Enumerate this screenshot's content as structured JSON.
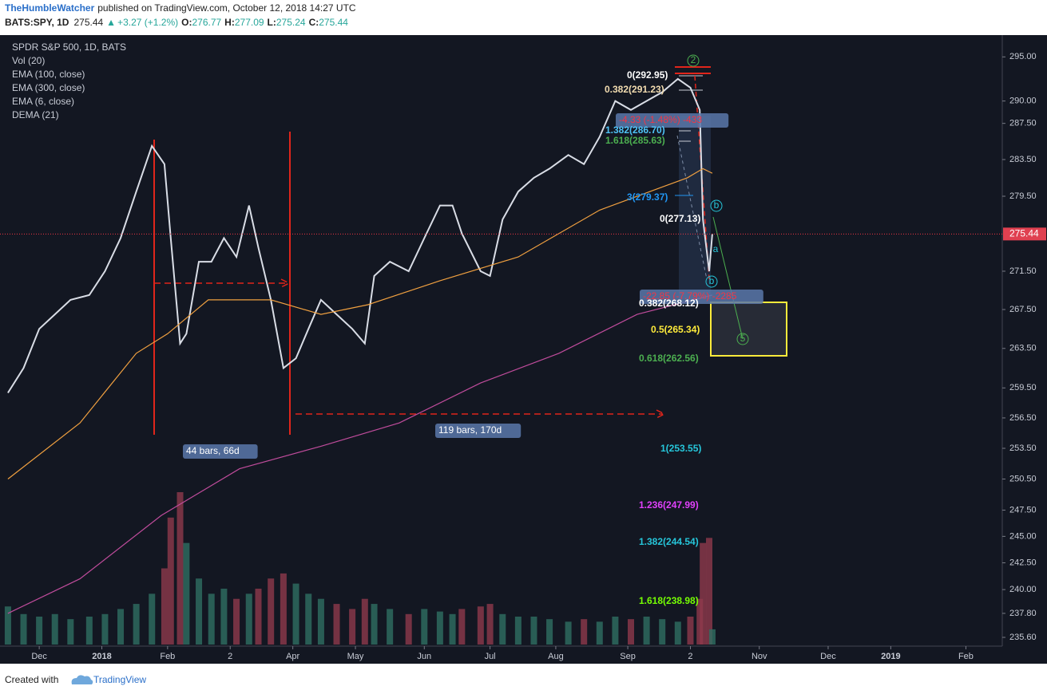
{
  "header": {
    "author": "TheHumbleWatcher",
    "published": "published on TradingView.com, October 12, 2018 14:27 UTC",
    "last": 275.44,
    "arrow": "▲",
    "change": "+3.27 (+1.2%)",
    "ohlc": [
      {
        "label": "O:",
        "value": 276.77
      },
      {
        "label": "H:",
        "value": 277.09
      },
      {
        "label": "L:",
        "value": 275.24
      },
      {
        "label": "C:",
        "value": 275.44
      }
    ]
  },
  "footer": {
    "created": "Created with",
    "brand": "TradingView"
  },
  "chart_data": {
    "type": "line",
    "title": "SPDR S&P 500, 1D, BATS",
    "log_scale": true,
    "grid": false,
    "xlim": [
      0,
      320
    ],
    "ylim": [
      234.8,
      297.5
    ],
    "xticks": [
      {
        "value": 11,
        "label": "Dec"
      },
      {
        "value": 31,
        "label": "2018"
      },
      {
        "value": 52,
        "label": "Feb"
      },
      {
        "value": 72,
        "label": "2"
      },
      {
        "value": 92,
        "label": "Apr"
      },
      {
        "value": 112,
        "label": "May"
      },
      {
        "value": 134,
        "label": "Jun"
      },
      {
        "value": 155,
        "label": "Jul"
      },
      {
        "value": 176,
        "label": "Aug"
      },
      {
        "value": 199,
        "label": "Sep"
      },
      {
        "value": 219,
        "label": "2"
      },
      {
        "value": 241,
        "label": "Nov"
      },
      {
        "value": 263,
        "label": "Dec"
      },
      {
        "value": 283,
        "label": "2019"
      },
      {
        "value": 307,
        "label": "Feb"
      }
    ],
    "yticks": [
      {
        "value": 295,
        "label": "295.00"
      },
      {
        "value": 290,
        "label": "290.00"
      },
      {
        "value": 287.5,
        "label": "287.50"
      },
      {
        "value": 283.5,
        "label": "283.50"
      },
      {
        "value": 279.5,
        "label": "279.50"
      },
      {
        "value": 271.5,
        "label": "271.50"
      },
      {
        "value": 267.5,
        "label": "267.50"
      },
      {
        "value": 263.5,
        "label": "263.50"
      },
      {
        "value": 259.5,
        "label": "259.50"
      },
      {
        "value": 256.5,
        "label": "256.50"
      },
      {
        "value": 253.5,
        "label": "253.50"
      },
      {
        "value": 250.5,
        "label": "250.50"
      },
      {
        "value": 247.5,
        "label": "247.50"
      },
      {
        "value": 245,
        "label": "245.00"
      },
      {
        "value": 242.5,
        "label": "242.50"
      },
      {
        "value": 240,
        "label": "240.00"
      },
      {
        "value": 237.8,
        "label": "237.80"
      },
      {
        "value": 235.6,
        "label": "235.60"
      }
    ],
    "last_price": 275.44,
    "series": [
      {
        "name": "BATS:SPY, 1D",
        "color": "#d9dde6",
        "x": [
          1,
          6,
          11,
          16,
          21,
          27,
          32,
          37,
          42,
          47,
          51,
          53,
          56,
          58,
          62,
          66,
          70,
          74,
          78,
          81,
          85,
          89,
          93,
          97,
          101,
          106,
          111,
          115,
          118,
          123,
          129,
          134,
          139,
          143,
          146,
          152,
          155,
          159,
          164,
          169,
          174,
          180,
          185,
          190,
          195,
          200,
          205,
          210,
          215,
          219,
          222,
          223,
          225,
          226
        ],
        "values": [
          259,
          261.5,
          265.5,
          267,
          268.5,
          269,
          271.5,
          275,
          280,
          285,
          283,
          275,
          264,
          265,
          272.5,
          272.5,
          275,
          273,
          278.5,
          274,
          268.5,
          261.5,
          262.5,
          265.5,
          268.5,
          267,
          265.5,
          264,
          271,
          272.5,
          271.5,
          275,
          278.5,
          278.5,
          275.5,
          271.5,
          271,
          277,
          280,
          281.5,
          282.5,
          284,
          283,
          286,
          290,
          289,
          290,
          291,
          292.5,
          291.5,
          289,
          277,
          271.5,
          275.44
        ]
      },
      {
        "name": "EMA (100, close)",
        "color": "#f0a040",
        "x": [
          1,
          24,
          42,
          52,
          65,
          85,
          101,
          116,
          139,
          164,
          190,
          210,
          218,
          223,
          226
        ],
        "values": [
          250.5,
          256,
          263,
          265,
          268.5,
          268.5,
          267,
          268,
          270.5,
          273,
          278,
          280.5,
          281.5,
          282.5,
          282
        ]
      },
      {
        "name": "EMA (300, close)",
        "color": "#c04c9c",
        "x": [
          1,
          24,
          50,
          75,
          101,
          126,
          152,
          177,
          202,
          226
        ],
        "values": [
          237.8,
          241,
          247,
          251.5,
          253.7,
          256,
          260,
          263,
          267,
          269
        ]
      }
    ],
    "indicators": [
      "EMA (6, close)",
      "DEMA (21)"
    ],
    "volume": {
      "name": "Vol (20)",
      "up_color": "#2f6f63",
      "down_color": "#8e3a4c",
      "values": [
        75,
        60,
        55,
        60,
        50,
        55,
        60,
        70,
        80,
        100,
        150,
        250,
        300,
        200,
        130,
        100,
        110,
        90,
        100,
        110,
        130,
        140,
        120,
        100,
        90,
        80,
        70,
        90,
        80,
        70,
        60,
        70,
        65,
        60,
        70,
        75,
        80,
        60,
        55,
        55,
        50,
        45,
        50,
        45,
        55,
        50,
        55,
        50,
        45,
        55,
        90,
        200,
        210,
        30
      ]
    },
    "annotations": [
      {
        "text": "0(292.95)",
        "color": "#ffffff"
      },
      {
        "text": "0.382(291.23)",
        "color": "#f2dcb0"
      },
      {
        "text": "-4.33 (-1.48%) -433",
        "color": "#f23645"
      },
      {
        "text": "1.382(286.70)",
        "color": "#4fc3f7"
      },
      {
        "text": "1.618(285.63)",
        "color": "#4caf50"
      },
      {
        "text": "3(279.37)",
        "color": "#2196f3"
      },
      {
        "text": "0(277.13)",
        "color": "#ffffff"
      },
      {
        "text": "-22.85 (-7.79%) -2285",
        "color": "#f23645"
      },
      {
        "text": "0.382(268.12)",
        "color": "#ffffff"
      },
      {
        "text": "0.5(265.34)",
        "color": "#ffeb3b"
      },
      {
        "text": "0.618(262.56)",
        "color": "#4caf50"
      },
      {
        "text": "1(253.55)",
        "color": "#26c6da"
      },
      {
        "text": "1.236(247.99)",
        "color": "#e040fb"
      },
      {
        "text": "1.382(244.54)",
        "color": "#26c6da"
      },
      {
        "text": "1.618(238.98)",
        "color": "#76ff03"
      },
      {
        "text": "44 bars, 66d",
        "color": "#ffffff"
      },
      {
        "text": "119 bars, 170d",
        "color": "#ffffff"
      },
      {
        "text": "2",
        "color": "#4caf50"
      },
      {
        "text": "5",
        "color": "#4caf50"
      },
      {
        "text": "b",
        "color": "#26c6da"
      },
      {
        "text": "a",
        "color": "#26c6da"
      },
      {
        "text": "b",
        "color": "#26c6da"
      }
    ]
  }
}
